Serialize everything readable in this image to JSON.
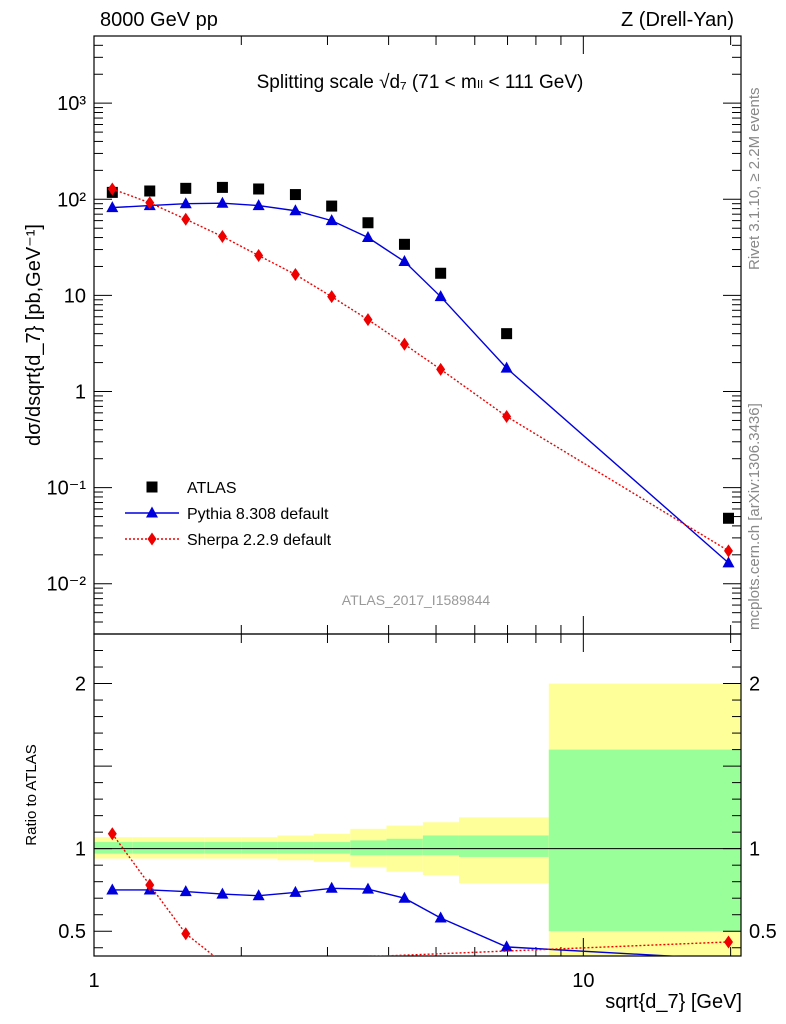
{
  "header": {
    "left": "8000 GeV pp",
    "right": "Z (Drell-Yan)"
  },
  "side_labels": {
    "rivet": "Rivet 3.1.10, ≥ 2.2M events",
    "mcplots": "mcplots.cern.ch [arXiv:1306.3436]"
  },
  "chart_data": [
    {
      "type": "scatter",
      "title": "Splitting scale √d₇ (71 < mₗₗ < 111 GeV)",
      "watermark": "ATLAS_2017_I1589844",
      "ylabel": "dσ/dsqrt{d_7} [pb,GeV⁻¹]",
      "xlabel": "sqrt{d_7} [GeV]",
      "xscale": "log",
      "yscale": "log",
      "xlim": [
        1,
        21
      ],
      "ylim": [
        0.003,
        5000
      ],
      "ytick_labels": [
        "10⁻²",
        "10⁻¹",
        "1",
        "10",
        "10²",
        "10³"
      ],
      "legend_position": "lower-left",
      "series": [
        {
          "name": "ATLAS",
          "marker": "square",
          "color": "#000000",
          "x": [
            1.09,
            1.3,
            1.54,
            1.83,
            2.17,
            2.58,
            3.06,
            3.63,
            4.31,
            5.11,
            6.97,
            19.8
          ],
          "y": [
            118,
            122,
            130,
            133,
            128,
            112,
            85,
            57,
            34,
            17,
            4.0,
            0.048
          ]
        },
        {
          "name": "Pythia 8.308 default",
          "marker": "triangle",
          "line": "solid",
          "color": "#0000dd",
          "x": [
            1.09,
            1.3,
            1.54,
            1.83,
            2.17,
            2.58,
            3.06,
            3.63,
            4.31,
            5.11,
            6.97,
            19.8
          ],
          "y": [
            82,
            86,
            90,
            91,
            86,
            76,
            60,
            40,
            22.5,
            9.7,
            1.75,
            0.0165
          ]
        },
        {
          "name": "Sherpa 2.2.9 default",
          "marker": "diamond",
          "line": "dotted",
          "color": "#ee0000",
          "x": [
            1.09,
            1.3,
            1.54,
            1.83,
            2.17,
            2.58,
            3.06,
            3.63,
            4.31,
            5.11,
            6.97,
            19.8
          ],
          "y": [
            128,
            92,
            62,
            41,
            26,
            16.5,
            9.7,
            5.6,
            3.1,
            1.7,
            0.55,
            0.022
          ]
        }
      ]
    },
    {
      "type": "line",
      "ylabel": "Ratio to ATLAS",
      "xlabel": "sqrt{d_7} [GeV]",
      "xscale": "log",
      "xlim": [
        1,
        21
      ],
      "ylim": [
        0.35,
        2.3
      ],
      "xtick_labels": [
        "1",
        "10"
      ],
      "ytick_labels": [
        "0.5",
        "1",
        "2"
      ],
      "uncertainty_bands": {
        "bin_edges": [
          1.0,
          1.2,
          1.42,
          1.68,
          2.0,
          2.37,
          2.81,
          3.34,
          3.96,
          4.7,
          5.57,
          8.5,
          21.0
        ],
        "total_low": [
          0.94,
          0.94,
          0.94,
          0.94,
          0.94,
          0.93,
          0.92,
          0.89,
          0.86,
          0.84,
          0.79,
          0.35
        ],
        "total_high": [
          1.07,
          1.07,
          1.07,
          1.07,
          1.07,
          1.08,
          1.09,
          1.12,
          1.14,
          1.16,
          1.19,
          2.0
        ],
        "stat_low": [
          0.97,
          0.97,
          0.97,
          0.97,
          0.97,
          0.97,
          0.97,
          0.96,
          0.96,
          0.96,
          0.95,
          0.5
        ],
        "stat_high": [
          1.04,
          1.04,
          1.04,
          1.04,
          1.04,
          1.04,
          1.04,
          1.05,
          1.06,
          1.08,
          1.08,
          1.6
        ],
        "total_color": "#ffff99",
        "stat_color": "#99ff99"
      },
      "series": [
        {
          "name": "Pythia 8.308 default",
          "color": "#0000dd",
          "x": [
            1.09,
            1.3,
            1.54,
            1.83,
            2.17,
            2.58,
            3.06,
            3.63,
            4.31,
            5.11,
            6.97,
            19.8
          ],
          "y": [
            0.75,
            0.75,
            0.74,
            0.725,
            0.715,
            0.735,
            0.76,
            0.755,
            0.7,
            0.58,
            0.405,
            0.33
          ]
        },
        {
          "name": "Sherpa 2.2.9 default",
          "color": "#ee0000",
          "x": [
            1.09,
            1.3,
            1.54,
            1.83,
            19.8
          ],
          "y": [
            1.09,
            0.78,
            0.485,
            0.31,
            0.435
          ]
        }
      ]
    }
  ]
}
